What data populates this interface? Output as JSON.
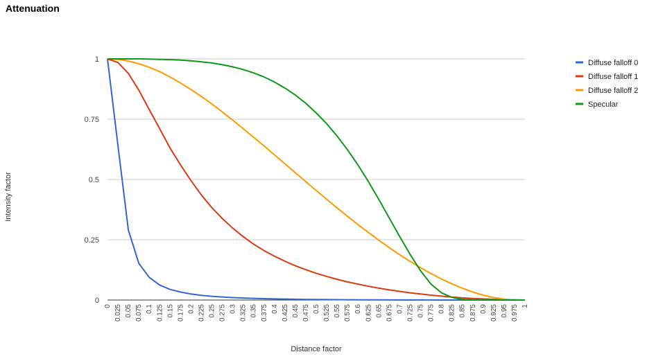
{
  "chart_data": {
    "type": "line",
    "title": "Attenuation",
    "xlabel": "Distance factor",
    "ylabel": "Intensity factor",
    "ylim": [
      0,
      1
    ],
    "xlim": [
      0,
      1
    ],
    "y_ticks": [
      "0",
      "0.25",
      "0.5",
      "0.75",
      "1"
    ],
    "x_tick_labels": [
      "0",
      "0.025",
      "0.05",
      "0.075",
      "0.1",
      "0.125",
      "0.15",
      "0.175",
      "0.2",
      "0.225",
      "0.25",
      "0.275",
      "0.3",
      "0.325",
      "0.35",
      "0.375",
      "0.4",
      "0.425",
      "0.45",
      "0.475",
      "0.5",
      "0.525",
      "0.55",
      "0.575",
      "0.6",
      "0.625",
      "0.65",
      "0.675",
      "0.7",
      "0.725",
      "0.75",
      "0.775",
      "0.8",
      "0.825",
      "0.85",
      "0.875",
      "0.9",
      "0.925",
      "0.95",
      "0.975",
      "1"
    ],
    "grid": true,
    "legend_position": "right",
    "series": [
      {
        "name": "Diffuse falloff 0",
        "color": "#3366cc",
        "values": [
          1.0,
          0.64,
          0.29,
          0.152,
          0.094,
          0.062,
          0.044,
          0.033,
          0.025,
          0.0195,
          0.0155,
          0.0125,
          0.0102,
          0.0084,
          0.0069,
          0.0057,
          0.0047,
          0.0039,
          0.0032,
          0.0026,
          0.0021,
          0.0017,
          0.0014,
          0.0011,
          0.0009,
          0.0007,
          0.0005,
          0.0004,
          0.0003,
          0.00025,
          0.0002,
          0.00015,
          0.0001,
          8e-05,
          6e-05,
          4e-05,
          3e-05,
          2e-05,
          1e-05,
          5e-06,
          0.0
        ]
      },
      {
        "name": "Diffuse falloff 1",
        "color": "#dc3912",
        "values": [
          1.0,
          0.985,
          0.94,
          0.87,
          0.79,
          0.71,
          0.63,
          0.56,
          0.495,
          0.435,
          0.383,
          0.338,
          0.298,
          0.263,
          0.232,
          0.205,
          0.182,
          0.161,
          0.142,
          0.126,
          0.111,
          0.098,
          0.086,
          0.075,
          0.066,
          0.057,
          0.049,
          0.042,
          0.036,
          0.03,
          0.025,
          0.02,
          0.016,
          0.012,
          0.009,
          0.0065,
          0.0045,
          0.0028,
          0.0015,
          0.0006,
          0.0
        ]
      },
      {
        "name": "Diffuse falloff 2",
        "color": "#ff9900",
        "values": [
          1.0,
          0.998,
          0.991,
          0.98,
          0.965,
          0.947,
          0.925,
          0.9,
          0.873,
          0.844,
          0.813,
          0.78,
          0.746,
          0.711,
          0.675,
          0.639,
          0.602,
          0.565,
          0.528,
          0.491,
          0.454,
          0.418,
          0.382,
          0.347,
          0.313,
          0.28,
          0.248,
          0.217,
          0.188,
          0.16,
          0.134,
          0.11,
          0.087,
          0.067,
          0.049,
          0.033,
          0.02,
          0.01,
          0.004,
          0.001,
          0.0
        ]
      },
      {
        "name": "Specular",
        "color": "#109618",
        "values": [
          1.0,
          1.0,
          1.0,
          1.0,
          0.999,
          0.998,
          0.997,
          0.995,
          0.992,
          0.988,
          0.983,
          0.976,
          0.967,
          0.956,
          0.942,
          0.925,
          0.904,
          0.879,
          0.85,
          0.816,
          0.776,
          0.731,
          0.68,
          0.623,
          0.56,
          0.491,
          0.417,
          0.34,
          0.263,
          0.189,
          0.121,
          0.066,
          0.03,
          0.011,
          0.003,
          0.0006,
          0.0001,
          0.0,
          0.0,
          0.0,
          0.0
        ]
      }
    ]
  }
}
